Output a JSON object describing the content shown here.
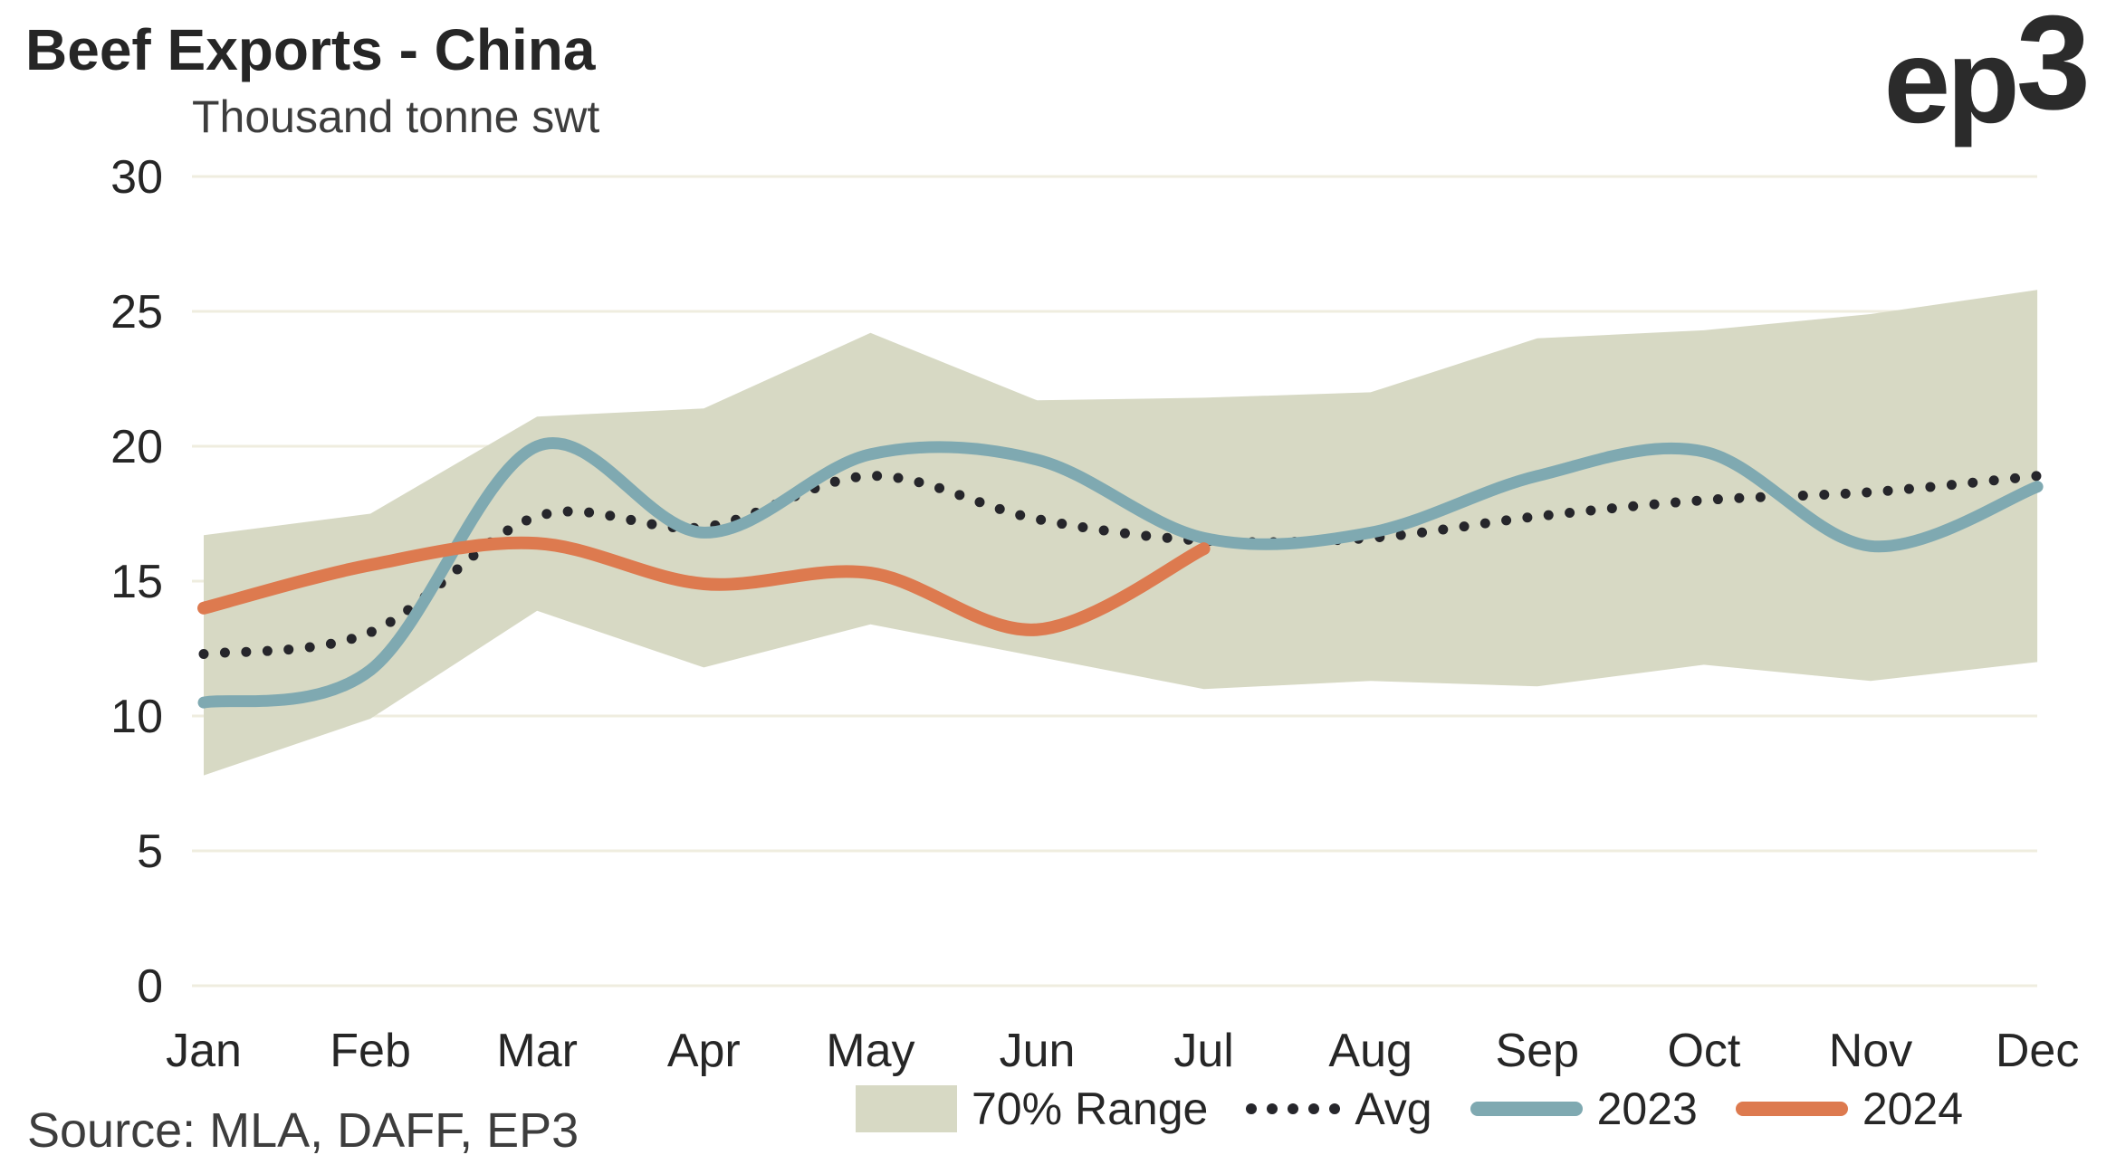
{
  "header": {
    "title": "Beef Exports - China",
    "subtitle": "Thousand tonne swt",
    "logo_ep": "ep",
    "logo_3": "3"
  },
  "source": {
    "text": "Source: MLA, DAFF, EP3"
  },
  "legend": {
    "range_label": "70% Range",
    "avg_label": "Avg",
    "y2023_label": "2023",
    "y2024_label": "2024"
  },
  "colors": {
    "band": "#D7D9C4",
    "avg_dots": "#26262B",
    "y2023": "#7FA9B1",
    "y2024": "#DD7A4F",
    "gridline": "#EFEDDF",
    "axis_text": "#262626",
    "background": "#FFFFFF"
  },
  "chart_data": {
    "type": "line",
    "title": "Beef Exports - China",
    "ylabel": "Thousand tonne swt",
    "xlabel": "",
    "categories": [
      "Jan",
      "Feb",
      "Mar",
      "Apr",
      "May",
      "Jun",
      "Jul",
      "Aug",
      "Sep",
      "Oct",
      "Nov",
      "Dec"
    ],
    "y_ticks": [
      0,
      5,
      10,
      15,
      20,
      25,
      30
    ],
    "ylim": [
      0,
      30
    ],
    "grid": true,
    "legend_position": "bottom",
    "series": [
      {
        "name": "70% Range",
        "type": "band",
        "low": [
          7.8,
          9.9,
          13.9,
          11.8,
          13.4,
          12.2,
          11.0,
          11.3,
          11.1,
          11.9,
          11.3,
          12.0
        ],
        "high": [
          16.7,
          17.5,
          21.1,
          21.4,
          24.2,
          21.7,
          21.8,
          22.0,
          24.0,
          24.3,
          24.9,
          25.8
        ]
      },
      {
        "name": "Avg",
        "type": "dotted-line",
        "values": [
          12.3,
          13.1,
          17.4,
          17.0,
          18.9,
          17.3,
          16.5,
          16.6,
          17.4,
          18.0,
          18.3,
          18.9
        ]
      },
      {
        "name": "2023",
        "type": "line",
        "values": [
          10.5,
          11.7,
          20.0,
          16.8,
          19.7,
          19.5,
          16.6,
          16.8,
          18.9,
          19.8,
          16.3,
          18.5
        ]
      },
      {
        "name": "2024",
        "type": "line",
        "values": [
          14.0,
          15.6,
          16.4,
          14.9,
          15.3,
          13.2,
          16.2,
          null,
          null,
          null,
          null,
          null
        ]
      }
    ]
  }
}
